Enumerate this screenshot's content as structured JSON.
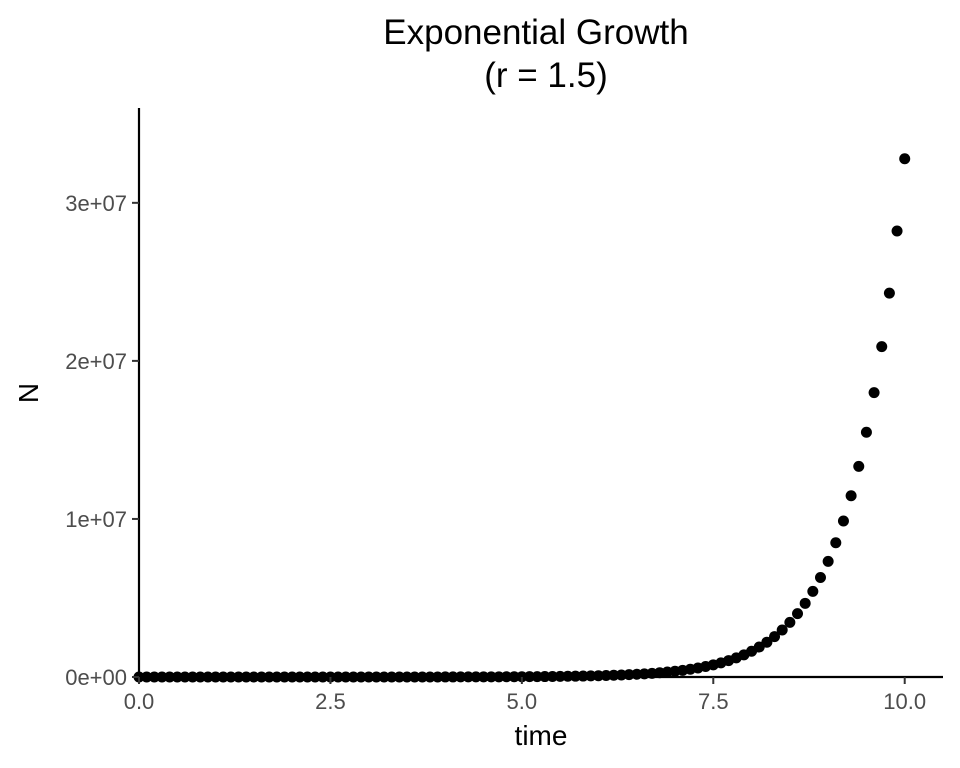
{
  "chart_data": {
    "type": "scatter",
    "title": "Exponential Growth",
    "subtitle": "(r = 1.5)",
    "xlabel": "time",
    "ylabel": "N",
    "xlim": [
      0,
      10.5
    ],
    "ylim": [
      0,
      36000000
    ],
    "x_ticks": [
      "0.0",
      "2.5",
      "5.0",
      "7.5",
      "10.0"
    ],
    "x_tick_values": [
      0,
      2.5,
      5,
      7.5,
      10
    ],
    "y_ticks": [
      "0e+00",
      "1e+07",
      "2e+07",
      "3e+07"
    ],
    "y_tick_values": [
      0,
      10000000,
      20000000,
      30000000
    ],
    "grid": false,
    "point_color": "#000000",
    "x": [
      0,
      0.1,
      0.2,
      0.3,
      0.4,
      0.5,
      0.6,
      0.7,
      0.8,
      0.9,
      1,
      1.1,
      1.2,
      1.3,
      1.4,
      1.5,
      1.6,
      1.7,
      1.8,
      1.9,
      2,
      2.1,
      2.2,
      2.3,
      2.4,
      2.5,
      2.6,
      2.7,
      2.8,
      2.9,
      3,
      3.1,
      3.2,
      3.3,
      3.4,
      3.5,
      3.6,
      3.7,
      3.8,
      3.9,
      4,
      4.1,
      4.2,
      4.3,
      4.4,
      4.5,
      4.6,
      4.7,
      4.8,
      4.9,
      5,
      5.1,
      5.2,
      5.3,
      5.4,
      5.5,
      5.6,
      5.7,
      5.8,
      5.9,
      6,
      6.1,
      6.2,
      6.3,
      6.4,
      6.5,
      6.6,
      6.7,
      6.8,
      6.9,
      7,
      7.1,
      7.2,
      7.3,
      7.4,
      7.5,
      7.6,
      7.7,
      7.8,
      7.9,
      8,
      8.1,
      8.2,
      8.3,
      8.4,
      8.5,
      8.6,
      8.7,
      8.8,
      8.9,
      9,
      9.1,
      9.2,
      9.3,
      9.4,
      9.5,
      9.6,
      9.7,
      9.8,
      9.9,
      10
    ],
    "y": [
      10,
      12,
      13,
      16,
      18,
      21,
      25,
      29,
      33,
      39,
      45,
      52,
      60,
      70,
      82,
      95,
      110,
      128,
      149,
      173,
      201,
      233,
      271,
      315,
      366,
      425,
      494,
      574,
      667,
      775,
      900,
      1045,
      1215,
      1411,
      1640,
      1906,
      2214,
      2573,
      2989,
      3473,
      4034,
      4688,
      5447,
      6328,
      7353,
      8543,
      9926,
      11533,
      13400,
      15570,
      18090,
      21019,
      24422,
      28376,
      32970,
      38308,
      44510,
      51716,
      60088,
      69816,
      81118,
      94251,
      109510,
      127240,
      147840,
      171770,
      199580,
      231890,
      269430,
      313050,
      363730,
      422610,
      491030,
      570520,
      662890,
      770200,
      894890,
      1039800,
      1208100,
      1403700,
      1630900,
      1894900,
      2201700,
      2558100,
      2972200,
      3453400,
      4012500,
      4662100,
      5416800,
      6293700,
      7312500,
      8496300,
      9871800,
      11470000,
      13327000,
      15484000,
      17990000,
      20903000,
      24287000,
      28219000,
      32787000
    ]
  }
}
